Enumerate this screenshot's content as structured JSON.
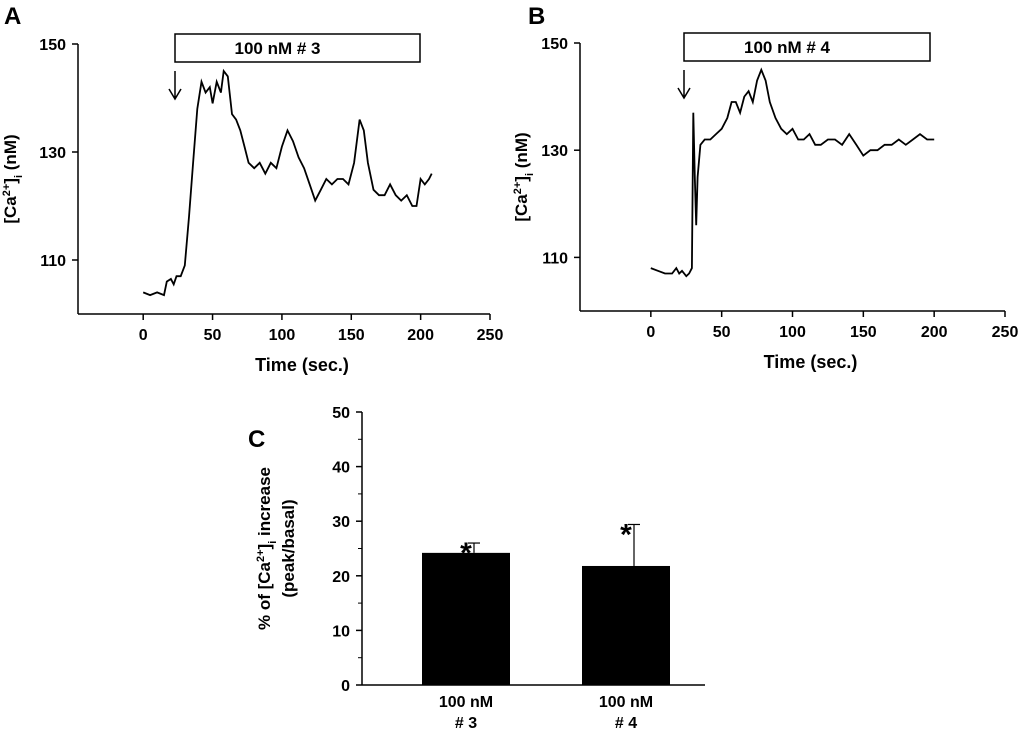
{
  "chart_data": [
    {
      "type": "line",
      "panel": "A",
      "ylabel": [
        [
          "[Ca",
          "2+",
          "]",
          "i",
          " (nM)"
        ]
      ],
      "xlabel": "Time (sec.)",
      "annotation": "100 nM # 3",
      "color": "#000000",
      "x": [
        0,
        5,
        10,
        15,
        17,
        20,
        22,
        24,
        27,
        30,
        33,
        36,
        39,
        42,
        45,
        48,
        50,
        53,
        56,
        58,
        61,
        64,
        67,
        70,
        73,
        76,
        80,
        84,
        88,
        92,
        96,
        100,
        104,
        108,
        112,
        116,
        120,
        124,
        128,
        132,
        136,
        140,
        144,
        148,
        152,
        156,
        159,
        162,
        166,
        170,
        174,
        178,
        182,
        186,
        190,
        194,
        197,
        200,
        203,
        206,
        208
      ],
      "values": [
        104,
        103.5,
        104,
        103.5,
        106,
        106.5,
        105.5,
        107,
        107,
        109,
        118,
        128,
        138,
        143,
        141,
        142,
        139,
        143,
        141,
        145,
        144,
        137,
        136,
        134,
        131,
        128,
        127,
        128,
        126,
        128,
        127,
        131,
        134,
        132,
        129,
        127,
        124,
        121,
        123,
        125,
        124,
        125,
        125,
        124,
        128,
        136,
        134,
        128,
        123,
        122,
        122,
        124,
        122,
        121,
        122,
        120,
        120,
        125,
        124,
        125,
        126
      ],
      "xlim": [
        -47,
        250
      ],
      "ylim": [
        100,
        150
      ],
      "xticks": [
        0,
        50,
        100,
        150,
        200,
        250
      ],
      "yticks": [
        110,
        130,
        150
      ]
    },
    {
      "type": "line",
      "panel": "B",
      "ylabel": [
        [
          "[Ca",
          "2+",
          "]",
          "i",
          " (nM)"
        ]
      ],
      "xlabel": "Time (sec.)",
      "annotation": "100 nM # 4",
      "color": "#000000",
      "x": [
        0,
        5,
        10,
        15,
        18,
        20,
        22,
        25,
        27,
        29,
        30,
        31,
        32,
        33,
        35,
        38,
        42,
        46,
        50,
        54,
        57,
        60,
        63,
        66,
        69,
        72,
        75,
        78,
        81,
        84,
        88,
        92,
        96,
        100,
        104,
        108,
        112,
        116,
        120,
        125,
        130,
        135,
        140,
        145,
        150,
        155,
        160,
        165,
        170,
        175,
        180,
        185,
        190,
        195,
        200
      ],
      "values": [
        108,
        107.5,
        107,
        107,
        108,
        107,
        107.5,
        106.5,
        107,
        108,
        137,
        125,
        116,
        125,
        131,
        132,
        132,
        133,
        134,
        136,
        139,
        139,
        137,
        140,
        141,
        139,
        143,
        145,
        143,
        139,
        136,
        134,
        133,
        134,
        132,
        132,
        133,
        131,
        131,
        132,
        132,
        131,
        133,
        131,
        129,
        130,
        130,
        131,
        131,
        132,
        131,
        132,
        133,
        132,
        132
      ],
      "xlim": [
        -50,
        250
      ],
      "ylim": [
        100,
        150
      ],
      "xticks": [
        0,
        50,
        100,
        150,
        200,
        250
      ],
      "yticks": [
        110,
        130,
        150
      ]
    },
    {
      "type": "bar",
      "panel": "C",
      "ylabel": [
        [
          "% of [Ca",
          "2+",
          "]",
          "i",
          " increase"
        ],
        [
          "(peak/basal)"
        ]
      ],
      "color": "#000000",
      "categories": [
        [
          "100 nM",
          "# 3"
        ],
        [
          "100 nM",
          "# 4"
        ]
      ],
      "values": [
        24.2,
        21.8
      ],
      "errors": [
        1.8,
        7.6
      ],
      "value_annotations": [
        "*",
        "*"
      ],
      "ylim": [
        0,
        50
      ],
      "yticks": [
        0,
        10,
        20,
        30,
        40,
        50
      ]
    }
  ]
}
